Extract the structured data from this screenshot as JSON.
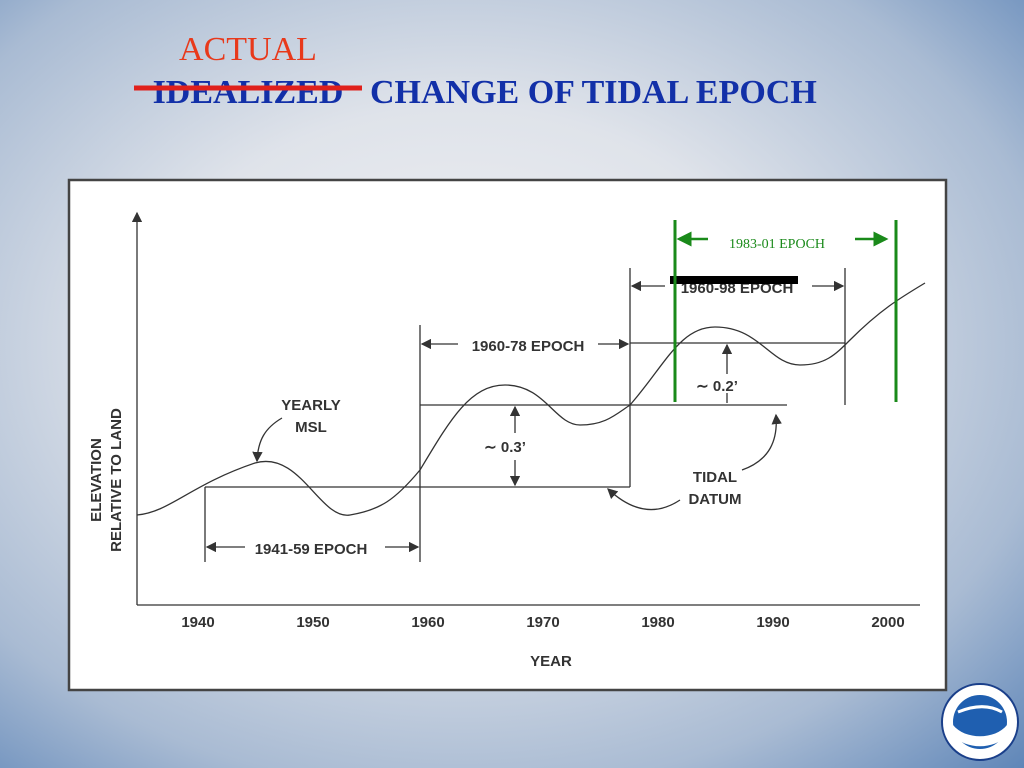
{
  "title": {
    "correction": "ACTUAL",
    "struck_word": "IDEALIZED",
    "rest": "CHANGE OF TIDAL EPOCH"
  },
  "diagram": {
    "x_ticks": [
      "1940",
      "1950",
      "1960",
      "1970",
      "1980",
      "1990",
      "2000"
    ],
    "x_label": "YEAR",
    "y_label": [
      "ELEVATION",
      "RELATIVE TO LAND"
    ],
    "curve_label": [
      "YEARLY",
      "MSL"
    ],
    "datum_label": [
      "TIDAL",
      "DATUM"
    ],
    "epochs": [
      "1941-59 EPOCH",
      "1960-78 EPOCH",
      "1960-98 EPOCH"
    ],
    "new_epoch": "1983-01 EPOCH",
    "offsets": [
      "∼ 0.3’",
      "∼ 0.2’"
    ]
  }
}
